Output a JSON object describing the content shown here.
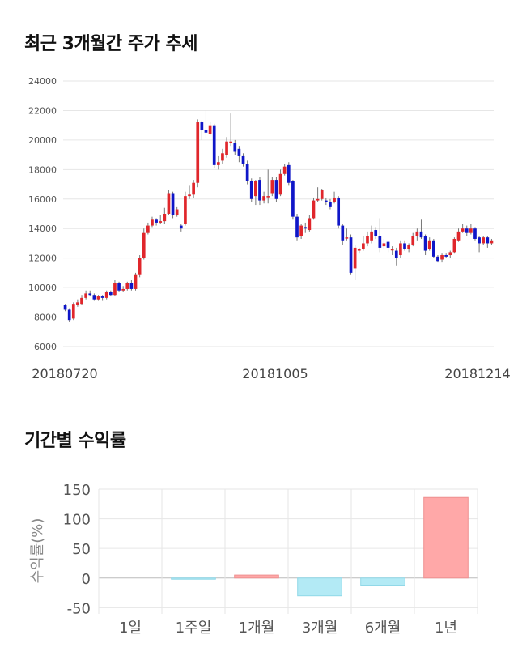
{
  "headings": {
    "price_trend": "최근 3개월간 주가 추세",
    "period_returns": "기간별 수익률"
  },
  "colors": {
    "up": "#e0262b",
    "down": "#0f16c8",
    "wick": "#777777",
    "bar_positive": "#ffa8a8",
    "bar_negative": "#b3eaf5"
  },
  "chart_data": [
    {
      "type": "candlestick",
      "title": "최근 3개월간 주가 추세",
      "ylim": [
        6000,
        24000
      ],
      "y_ticks": [
        6000,
        8000,
        10000,
        12000,
        14000,
        16000,
        18000,
        20000,
        22000,
        24000
      ],
      "x_tick_labels": [
        "20180720",
        "20181005",
        "20181214"
      ],
      "grid": true,
      "candles": [
        [
          8800,
          8500,
          8900,
          8400
        ],
        [
          8500,
          7800,
          8600,
          7700
        ],
        [
          7900,
          8900,
          9000,
          7800
        ],
        [
          8800,
          9000,
          9200,
          8700
        ],
        [
          8900,
          9300,
          9500,
          8800
        ],
        [
          9300,
          9600,
          9800,
          9200
        ],
        [
          9600,
          9500,
          9800,
          9400
        ],
        [
          9500,
          9200,
          9600,
          9100
        ],
        [
          9200,
          9400,
          9500,
          9100
        ],
        [
          9400,
          9300,
          9500,
          9100
        ],
        [
          9300,
          9700,
          9800,
          9200
        ],
        [
          9700,
          9500,
          9800,
          9400
        ],
        [
          9500,
          10300,
          10500,
          9400
        ],
        [
          10300,
          9800,
          10400,
          9700
        ],
        [
          9800,
          9900,
          10100,
          9700
        ],
        [
          9900,
          10300,
          10400,
          9800
        ],
        [
          10300,
          9900,
          10500,
          9800
        ],
        [
          9900,
          10900,
          11000,
          9800
        ],
        [
          10900,
          12000,
          12200,
          10700
        ],
        [
          12000,
          13700,
          14000,
          11900
        ],
        [
          13700,
          14200,
          14400,
          13600
        ],
        [
          14200,
          14600,
          14800,
          14100
        ],
        [
          14600,
          14400,
          14700,
          14200
        ],
        [
          14400,
          14500,
          14900,
          14300
        ],
        [
          14500,
          15000,
          15400,
          14300
        ],
        [
          15000,
          16400,
          16600,
          14900
        ],
        [
          16400,
          14900,
          16500,
          14700
        ],
        [
          14900,
          15300,
          15500,
          14800
        ],
        [
          14200,
          14000,
          14300,
          13800
        ],
        [
          14300,
          16200,
          16500,
          14200
        ],
        [
          16200,
          16300,
          16900,
          16000
        ],
        [
          16300,
          17100,
          17300,
          16100
        ],
        [
          17100,
          21200,
          21400,
          16800
        ],
        [
          21200,
          20700,
          21300,
          20000
        ],
        [
          20700,
          20500,
          22000,
          20100
        ],
        [
          20400,
          21000,
          21200,
          20300
        ],
        [
          21000,
          18300,
          21100,
          18100
        ],
        [
          18300,
          18500,
          18900,
          18000
        ],
        [
          18600,
          19100,
          19400,
          18400
        ],
        [
          19000,
          19900,
          20200,
          18800
        ],
        [
          19900,
          19900,
          21800,
          19600
        ],
        [
          19800,
          19200,
          20000,
          19000
        ],
        [
          19400,
          18900,
          19600,
          18500
        ],
        [
          18900,
          18400,
          19100,
          18200
        ],
        [
          18400,
          17200,
          18600,
          17000
        ],
        [
          17200,
          16000,
          17400,
          15800
        ],
        [
          16200,
          17200,
          17300,
          15600
        ],
        [
          17300,
          15900,
          17500,
          15600
        ],
        [
          15900,
          16200,
          16500,
          15700
        ],
        [
          16200,
          16200,
          18000,
          15700
        ],
        [
          16400,
          17300,
          17500,
          16200
        ],
        [
          17300,
          16000,
          17500,
          15800
        ],
        [
          16300,
          17700,
          18000,
          16200
        ],
        [
          17700,
          18200,
          18400,
          17600
        ],
        [
          18300,
          17100,
          18500,
          16900
        ],
        [
          17200,
          14800,
          17300,
          14600
        ],
        [
          14800,
          13400,
          15000,
          13200
        ],
        [
          13500,
          14200,
          14300,
          13300
        ],
        [
          14100,
          14000,
          14400,
          13700
        ],
        [
          13900,
          14700,
          14900,
          13800
        ],
        [
          14700,
          15900,
          16100,
          14600
        ],
        [
          15900,
          16000,
          16800,
          15800
        ],
        [
          16000,
          16600,
          16700,
          15900
        ],
        [
          15900,
          15800,
          16100,
          15600
        ],
        [
          15800,
          15500,
          16000,
          15300
        ],
        [
          15800,
          16100,
          16500,
          15700
        ],
        [
          16100,
          14200,
          16200,
          14000
        ],
        [
          14200,
          13200,
          14300,
          12900
        ],
        [
          13400,
          13400,
          14000,
          13200
        ],
        [
          13400,
          11000,
          13600,
          10900
        ],
        [
          11300,
          12700,
          12900,
          10500
        ],
        [
          12500,
          12600,
          12700,
          12300
        ],
        [
          12600,
          13000,
          13500,
          12500
        ],
        [
          13000,
          13500,
          13800,
          12800
        ],
        [
          13200,
          13800,
          14200,
          13000
        ],
        [
          13900,
          13500,
          14100,
          13300
        ],
        [
          13500,
          12700,
          14700,
          12400
        ],
        [
          12800,
          13000,
          13300,
          12600
        ],
        [
          13100,
          12700,
          13200,
          12400
        ],
        [
          12600,
          12600,
          12800,
          12200
        ],
        [
          12500,
          12000,
          12700,
          11500
        ],
        [
          12200,
          13000,
          13200,
          12000
        ],
        [
          13000,
          12600,
          13200,
          12500
        ],
        [
          12600,
          12900,
          13000,
          12400
        ],
        [
          12900,
          13500,
          13700,
          12800
        ],
        [
          13500,
          13800,
          14000,
          13200
        ],
        [
          13800,
          13400,
          14600,
          13300
        ],
        [
          13500,
          12500,
          13600,
          12200
        ],
        [
          12600,
          13200,
          13400,
          12500
        ],
        [
          13200,
          12100,
          13300,
          12000
        ],
        [
          12100,
          11800,
          12200,
          11700
        ],
        [
          11900,
          12200,
          12300,
          11700
        ],
        [
          12200,
          12100,
          12300,
          12000
        ],
        [
          12200,
          12400,
          12500,
          12000
        ],
        [
          12400,
          13300,
          13400,
          12300
        ],
        [
          13200,
          13800,
          14000,
          13100
        ],
        [
          13800,
          14000,
          14300,
          13700
        ],
        [
          14000,
          13700,
          14200,
          13500
        ],
        [
          13700,
          14000,
          14300,
          13600
        ],
        [
          14000,
          13300,
          14100,
          13200
        ],
        [
          13400,
          13000,
          13500,
          12400
        ],
        [
          13000,
          13400,
          13500,
          12900
        ],
        [
          13400,
          13000,
          13500,
          12700
        ],
        [
          13000,
          13200,
          13300,
          12900
        ]
      ]
    },
    {
      "type": "bar",
      "title": "기간별 수익률",
      "categories": [
        "1일",
        "1주일",
        "1개월",
        "3개월",
        "6개월",
        "1년"
      ],
      "values": [
        0,
        -2,
        5,
        -30,
        -12,
        136
      ],
      "ylabel": "수익률(%)",
      "ylim": [
        -55,
        150
      ],
      "y_ticks": [
        -50,
        0,
        50,
        100,
        150
      ],
      "grid": true
    }
  ]
}
